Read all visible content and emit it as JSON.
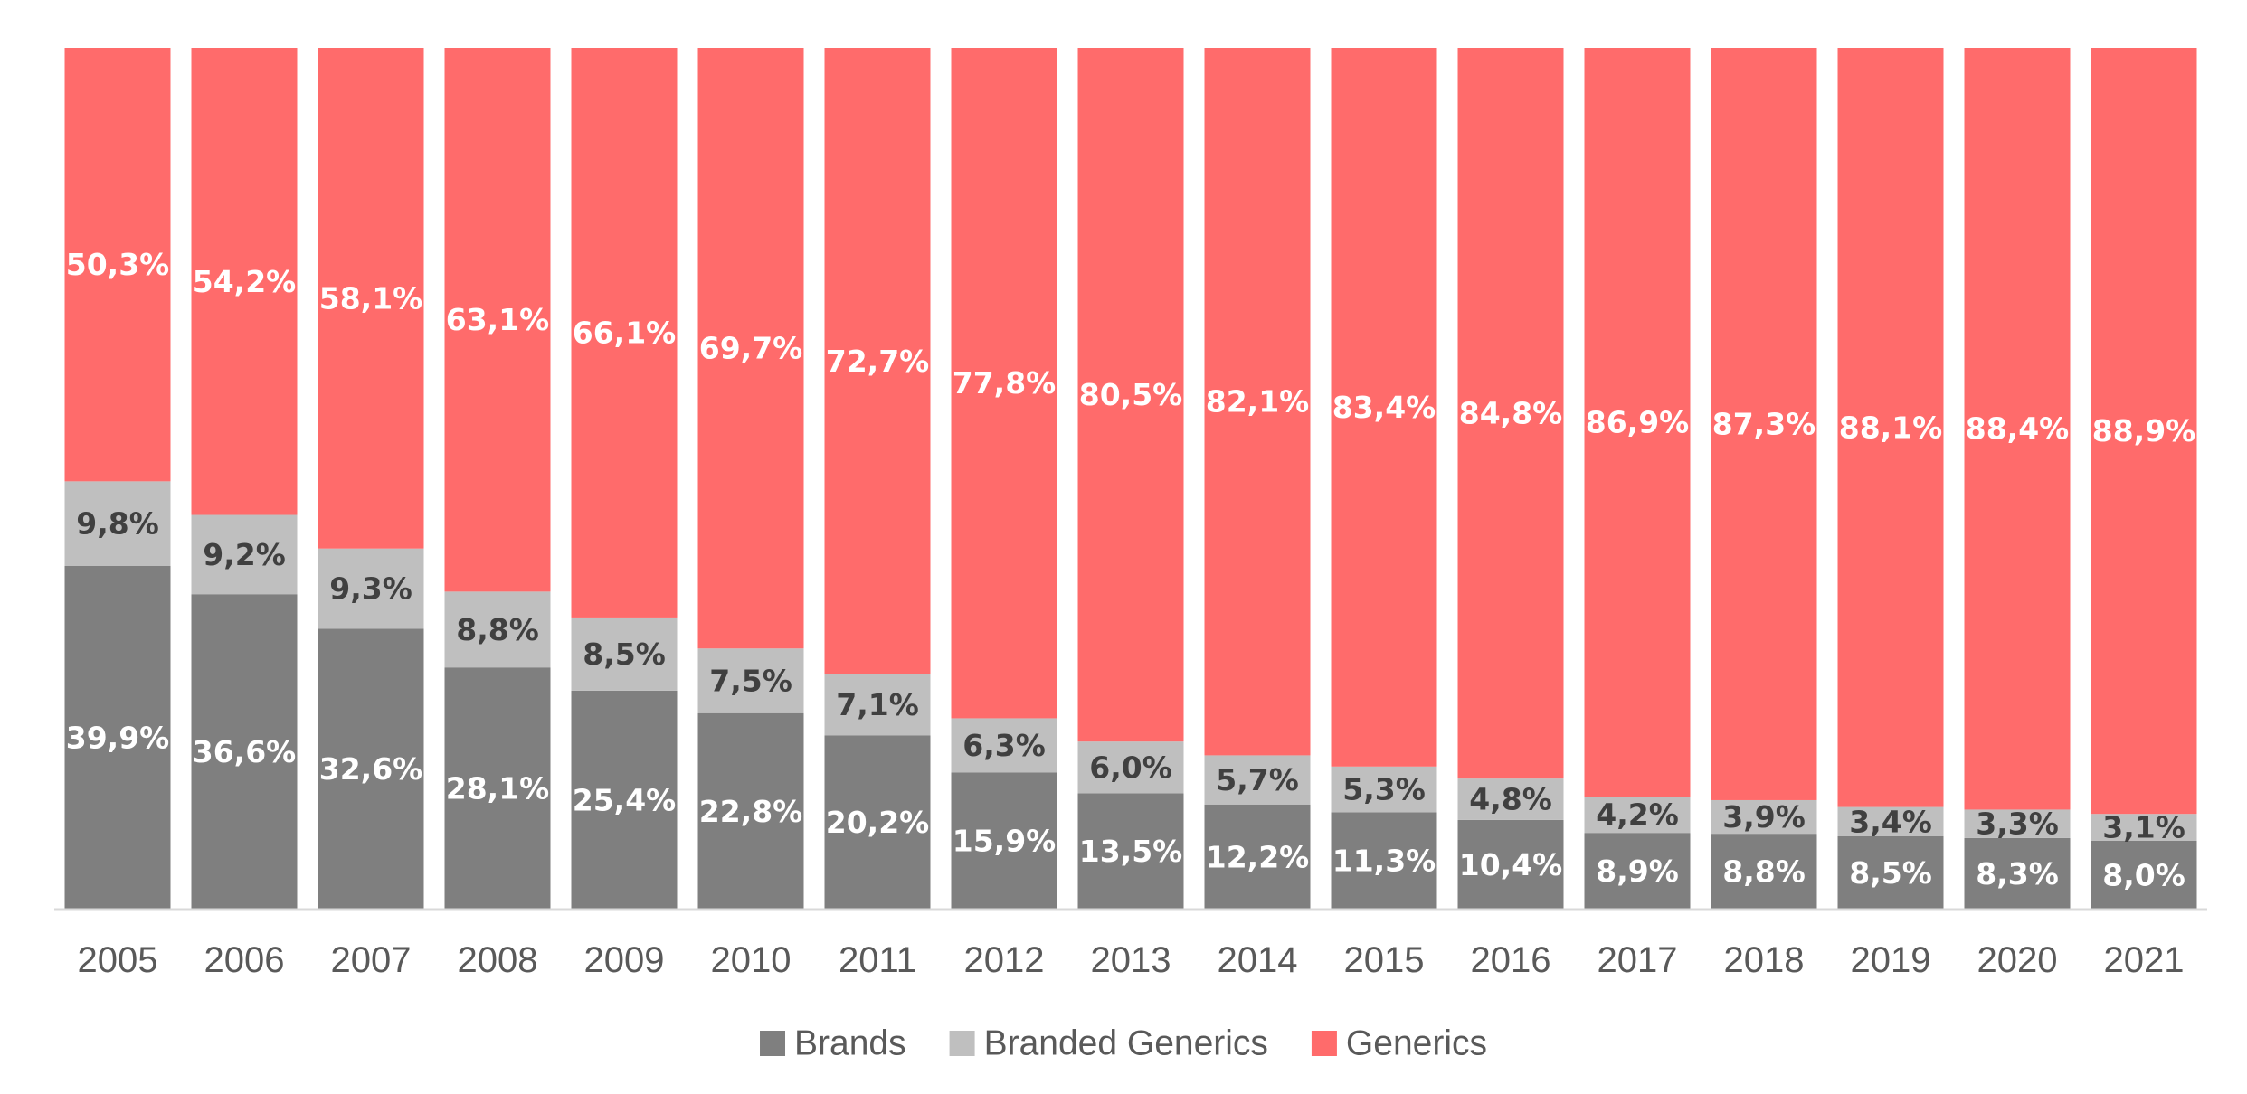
{
  "chart_data": {
    "type": "bar",
    "stacked": true,
    "normalized": true,
    "title": "",
    "xlabel": "",
    "ylabel": "",
    "ylim": [
      0,
      100
    ],
    "grid": false,
    "legend_position": "bottom",
    "categories": [
      "2005",
      "2006",
      "2007",
      "2008",
      "2009",
      "2010",
      "2011",
      "2012",
      "2013",
      "2014",
      "2015",
      "2016",
      "2017",
      "2018",
      "2019",
      "2020",
      "2021"
    ],
    "series": [
      {
        "name": "Brands",
        "color": "#7f7f7f",
        "label_color": "#ffffff",
        "values": [
          39.9,
          36.6,
          32.6,
          28.1,
          25.4,
          22.8,
          20.2,
          15.9,
          13.5,
          12.2,
          11.3,
          10.4,
          8.9,
          8.8,
          8.5,
          8.3,
          8.0
        ],
        "labels": [
          "39,9%",
          "36,6%",
          "32,6%",
          "28,1%",
          "25,4%",
          "22,8%",
          "20,2%",
          "15,9%",
          "13,5%",
          "12,2%",
          "11,3%",
          "10,4%",
          "8,9%",
          "8,8%",
          "8,5%",
          "8,3%",
          "8,0%"
        ]
      },
      {
        "name": "Branded Generics",
        "color": "#bfbfbf",
        "label_color": "#404040",
        "values": [
          9.8,
          9.2,
          9.3,
          8.8,
          8.5,
          7.5,
          7.1,
          6.3,
          6.0,
          5.7,
          5.3,
          4.8,
          4.2,
          3.9,
          3.4,
          3.3,
          3.1
        ],
        "labels": [
          "9,8%",
          "9,2%",
          "9,3%",
          "8,8%",
          "8,5%",
          "7,5%",
          "7,1%",
          "6,3%",
          "6,0%",
          "5,7%",
          "5,3%",
          "4,8%",
          "4,2%",
          "3,9%",
          "3,4%",
          "3,3%",
          "3,1%"
        ]
      },
      {
        "name": "Generics",
        "color": "#ff6b6b",
        "label_color": "#ffffff",
        "values": [
          50.3,
          54.2,
          58.1,
          63.1,
          66.1,
          69.7,
          72.7,
          77.8,
          80.5,
          82.1,
          83.4,
          84.8,
          86.9,
          87.3,
          88.1,
          88.4,
          88.9
        ],
        "labels": [
          "50,3%",
          "54,2%",
          "58,1%",
          "63,1%",
          "66,1%",
          "69,7%",
          "72,7%",
          "77,8%",
          "80,5%",
          "82,1%",
          "83,4%",
          "84,8%",
          "86,9%",
          "87,3%",
          "88,1%",
          "88,4%",
          "88,9%"
        ]
      }
    ]
  }
}
